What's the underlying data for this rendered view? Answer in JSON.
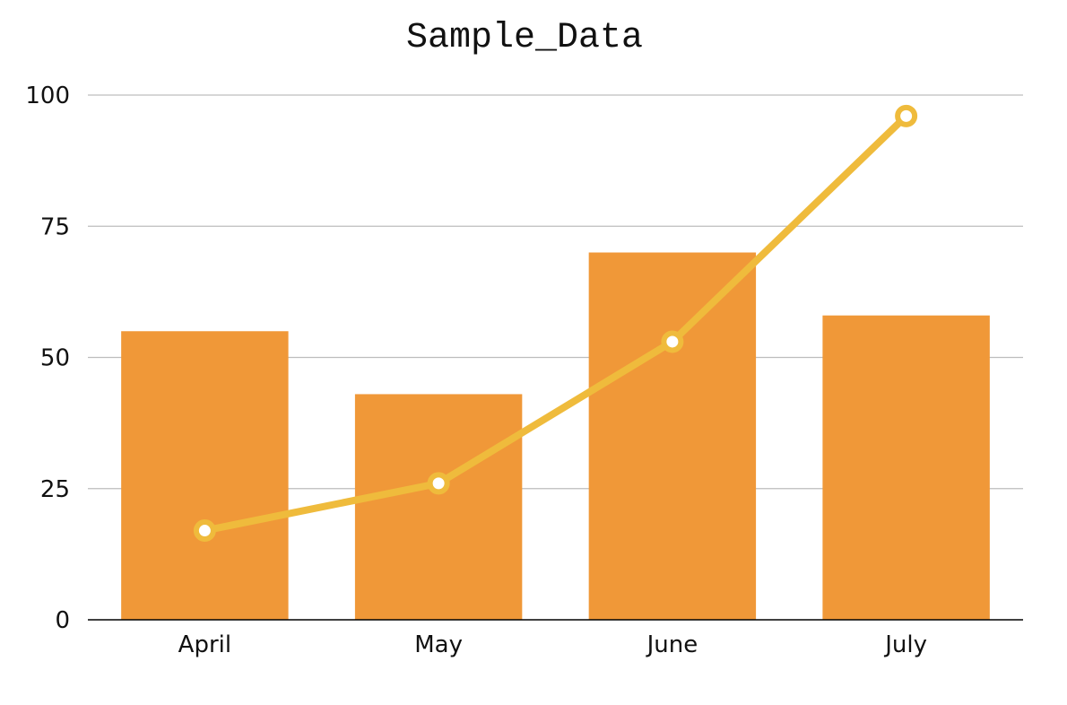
{
  "chart_data": {
    "type": "bar",
    "title": "Sample_Data",
    "categories": [
      "April",
      "May",
      "June",
      "July"
    ],
    "series": [
      {
        "type": "bar",
        "values": [
          55,
          43,
          70,
          58
        ],
        "color": "#F09838"
      },
      {
        "type": "line",
        "values": [
          17,
          26,
          53,
          96
        ],
        "color": "#EFBB3C"
      }
    ],
    "ylim": [
      0,
      100
    ],
    "yticks": [
      0,
      25,
      50,
      75,
      100
    ],
    "grid": true,
    "legend": "none"
  }
}
